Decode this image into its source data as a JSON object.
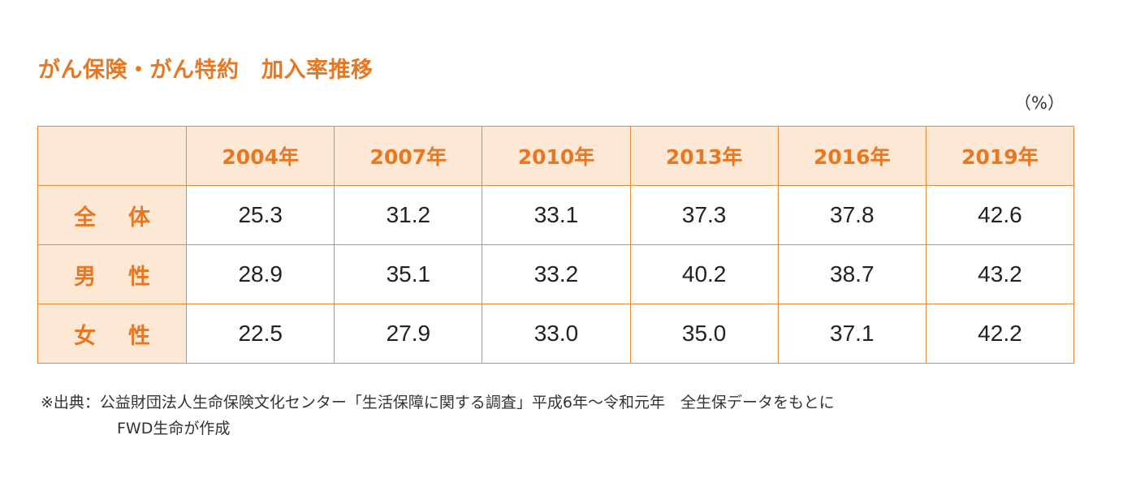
{
  "title": "がん保険・がん特約　加入率推移",
  "unit": "（%）",
  "chart_data": {
    "type": "table",
    "columns": [
      "2004年",
      "2007年",
      "2010年",
      "2013年",
      "2016年",
      "2019年"
    ],
    "rows": [
      {
        "label": "全体",
        "values": [
          "25.3",
          "31.2",
          "33.1",
          "37.3",
          "37.8",
          "42.6"
        ]
      },
      {
        "label": "男性",
        "values": [
          "28.9",
          "35.1",
          "33.2",
          "40.2",
          "38.7",
          "43.2"
        ]
      },
      {
        "label": "女性",
        "values": [
          "22.5",
          "27.9",
          "33.0",
          "35.0",
          "37.1",
          "42.2"
        ]
      }
    ]
  },
  "note": {
    "line1": "※出典：公益財団法人生命保険文化センター「生活保障に関する調査」平成6年～令和元年　全生保データをもとに",
    "line2": "FWD生命が作成"
  },
  "colors": {
    "accent": "#e87722",
    "header_bg": "#fde8d6",
    "border": "#e8883c"
  }
}
